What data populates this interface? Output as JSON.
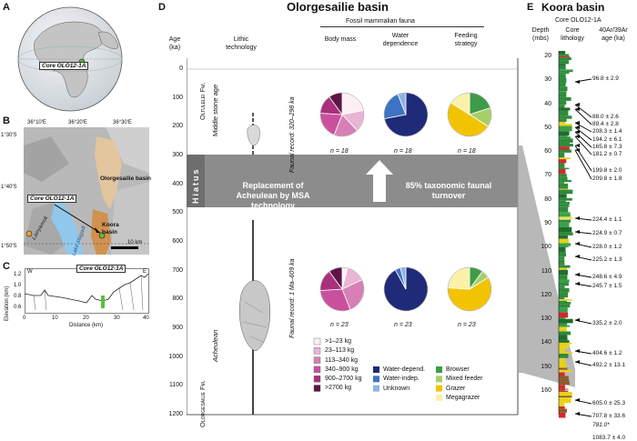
{
  "panels": {
    "A": {
      "label": "A",
      "core_label": "Core OLO12-1A"
    },
    "B": {
      "label": "B",
      "lon_ticks": [
        "36°10′E",
        "36°20′E",
        "36°30′E"
      ],
      "lat_ticks": [
        "1°30′S",
        "1°40′S",
        "1°50′S"
      ],
      "core_label": "Core OLO12-1A",
      "olorgesailie_label": "Olorgesailie basin",
      "koora_label": "Koora basin",
      "lainyamok_label": "Lainyamok",
      "lake_label": "Lake Magadi",
      "scale_label": "10 km"
    },
    "C": {
      "label": "C",
      "ylabel": "Elevation (km)",
      "xlabel": "Distance (km)",
      "y_ticks": [
        "1.2",
        "1.0",
        "0.8",
        "0.6"
      ],
      "x_ticks": [
        "0",
        "10",
        "20",
        "30",
        "40"
      ],
      "w": "W",
      "e": "E",
      "core_label": "Core OLO12-1A"
    },
    "D": {
      "label": "D",
      "title": "Olorgesailie basin",
      "fauna_header": "Fossil mammalian fauna",
      "col_age": "Age",
      "col_age_unit": "(ka)",
      "col_lithic": "Lithic",
      "col_lithic2": "technology",
      "col_body": "Body mass",
      "col_water": "Water",
      "col_water2": "dependence",
      "col_feed": "Feeding",
      "col_feed2": "strategy",
      "age_ticks": [
        "0",
        "100",
        "200",
        "300",
        "400",
        "500",
        "600",
        "700",
        "800",
        "900",
        "1000",
        "1100",
        "1200"
      ],
      "oltulelei": "Oltulelei Fm.",
      "msa": "Middle stone age",
      "hiatus": "Hiatus",
      "olorgesailie_fm": "Olorgesailie Fm.",
      "acheulean": "Acheulean",
      "upper_record": "Faunal record: 320–298 ka",
      "lower_record": "Faunal record: 1 Ma–609 ka",
      "replacement": "Replacement of Acheulean by MSA technology",
      "turnover": "85% taxonomic faunal turnover",
      "n_upper": "n = 18",
      "n_lower": "n = 23",
      "legend_body": [
        ">1–23 kg",
        "23–113 kg",
        "113–340 kg",
        "340–900 kg",
        "900–2700 kg",
        ">2700 kg"
      ],
      "legend_water": [
        "Water-depend.",
        "Water-indep.",
        "Unknown"
      ],
      "legend_feed": [
        "Browser",
        "Mixed feeder",
        "Grazer",
        "Megagrazer"
      ]
    },
    "E": {
      "label": "E",
      "title": "Koora basin",
      "core": "Core OLO12-1A",
      "col_depth": "Depth",
      "col_depth_unit": "(mbs)",
      "col_lith": "Core",
      "col_lith2": "lithology",
      "col_age": "40Ar/39Ar",
      "col_age2": "age (ka)",
      "depth_ticks": [
        "20",
        "30",
        "40",
        "50",
        "60",
        "70",
        "80",
        "90",
        "100",
        "110",
        "120",
        "130",
        "140",
        "150",
        "160"
      ],
      "ages": [
        "96.8 ± 2.9",
        "88.0 ± 2.6",
        "89.4 ± 2.8",
        "208.3 ± 1.4",
        "194.2 ± 6.1",
        "165.8 ± 7.3",
        "181.2 ± 0.7",
        "199.8 ± 2.0",
        "209.8 ± 1.8",
        "224.4 ± 1.1",
        "224.9 ± 0.7",
        "228.0 ± 1.2",
        "225.2 ± 1.3",
        "248.6 ± 4.9",
        "245.7 ± 1.5",
        "335.2 ± 2.0",
        "404.6 ± 1.2",
        "492.2 ± 13.1",
        "605.0 ± 25.3",
        "707.8 ± 33.6",
        "781.0*",
        "1083.7 ± 4.0"
      ]
    }
  },
  "pie_data": {
    "colors_body": [
      "#fbeff5",
      "#e8b5d3",
      "#d87fb6",
      "#c9519c",
      "#a8317c",
      "#5e1446"
    ],
    "colors_water": [
      "#1f2a78",
      "#3d73c4",
      "#8fb2e2"
    ],
    "colors_feed": [
      "#3f9b47",
      "#a6cf6b",
      "#f2c300",
      "#fbf1a8"
    ],
    "upper": {
      "body": [
        22,
        16,
        18,
        20,
        14,
        10
      ],
      "water": [
        72,
        22,
        6
      ],
      "feed": [
        20,
        14,
        50,
        16
      ]
    },
    "lower": {
      "body": [
        4,
        14,
        26,
        30,
        16,
        10
      ],
      "water": [
        92,
        4,
        4
      ],
      "feed": [
        10,
        6,
        60,
        24
      ]
    }
  }
}
